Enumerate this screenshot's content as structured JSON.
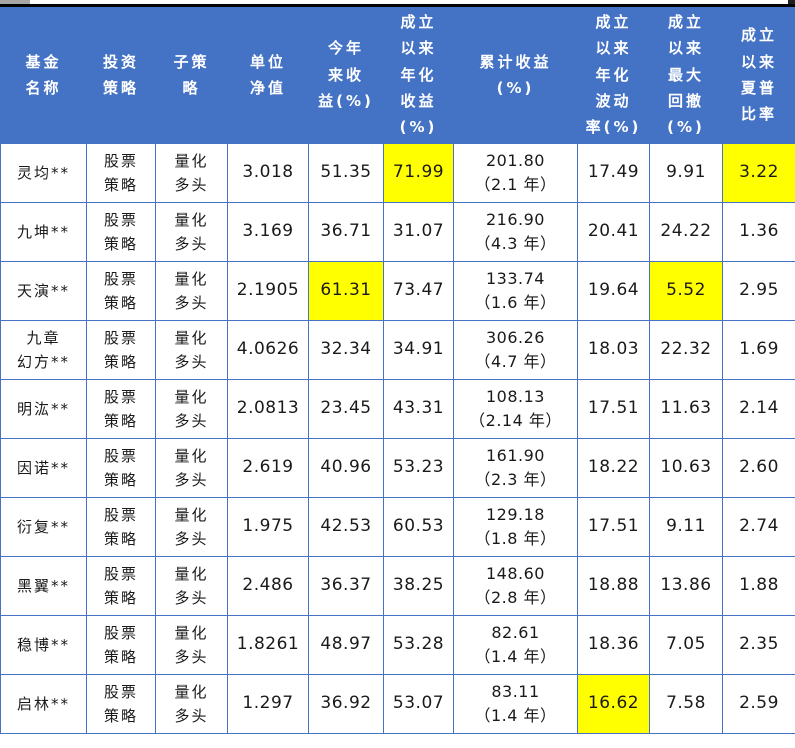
{
  "colors": {
    "header_bg": "#4472c4",
    "border": "#4472c4",
    "header_text": "#ffffff",
    "body_text": "#1a1a1a",
    "highlight": "#ffff00",
    "top_rule": "#000000"
  },
  "table": {
    "column_keys": [
      "fund-name",
      "investment-strategy",
      "sub-strategy",
      "unit-nav",
      "ytd-return-pct",
      "annualized-return-pct",
      "cumulative-return-pct",
      "annualized-volatility-pct",
      "max-drawdown-pct",
      "sharpe-ratio"
    ],
    "headers": [
      "基金\n名称",
      "投资\n策略",
      "子策\n略",
      "单位\n净值",
      "今年\n来收\n益(%)",
      "成立\n以来\n年化\n收益\n(%)",
      "累计收益\n(%)",
      "成立\n以来\n年化\n波动\n率(%)",
      "成立\n以来\n最大\n回撤\n(%)",
      "成立\n以来\n夏普\n比率"
    ],
    "rows": [
      [
        "灵均**",
        "股票\n策略",
        "量化\n多头",
        "3.018",
        "51.35",
        "71.99",
        "201.80\n（2.1 年）",
        "17.49",
        "9.91",
        "3.22"
      ],
      [
        "九坤**",
        "股票\n策略",
        "量化\n多头",
        "3.169",
        "36.71",
        "31.07",
        "216.90\n（4.3 年）",
        "20.41",
        "24.22",
        "1.36"
      ],
      [
        "天演**",
        "股票\n策略",
        "量化\n多头",
        "2.1905",
        "61.31",
        "73.47",
        "133.74\n（1.6 年）",
        "19.64",
        "5.52",
        "2.95"
      ],
      [
        "九章\n幻方**",
        "股票\n策略",
        "量化\n多头",
        "4.0626",
        "32.34",
        "34.91",
        "306.26\n（4.7 年）",
        "18.03",
        "22.32",
        "1.69"
      ],
      [
        "明汯**",
        "股票\n策略",
        "量化\n多头",
        "2.0813",
        "23.45",
        "43.31",
        "108.13\n（2.14 年）",
        "17.51",
        "11.63",
        "2.14"
      ],
      [
        "因诺**",
        "股票\n策略",
        "量化\n多头",
        "2.619",
        "40.96",
        "53.23",
        "161.90\n（2.3 年）",
        "18.22",
        "10.63",
        "2.60"
      ],
      [
        "衍复**",
        "股票\n策略",
        "量化\n多头",
        "1.975",
        "42.53",
        "60.53",
        "129.18\n（1.8 年）",
        "17.51",
        "9.11",
        "2.74"
      ],
      [
        "黑翼**",
        "股票\n策略",
        "量化\n多头",
        "2.486",
        "36.37",
        "38.25",
        "148.60\n（2.8 年）",
        "18.88",
        "13.86",
        "1.88"
      ],
      [
        "稳博**",
        "股票\n策略",
        "量化\n多头",
        "1.8261",
        "48.97",
        "53.28",
        "82.61\n（1.4 年）",
        "18.36",
        "7.05",
        "2.35"
      ],
      [
        "启林**",
        "股票\n策略",
        "量化\n多头",
        "1.297",
        "36.92",
        "53.07",
        "83.11\n（1.4 年）",
        "16.62",
        "7.58",
        "2.59"
      ]
    ],
    "highlighted_cells": [
      [
        0,
        5
      ],
      [
        0,
        9
      ],
      [
        2,
        4
      ],
      [
        2,
        8
      ],
      [
        9,
        7
      ]
    ]
  },
  "chart_data": {
    "type": "table",
    "title": "",
    "columns": [
      "基金名称",
      "投资策略",
      "子策略",
      "单位净值",
      "今年来收益(%)",
      "成立以来年化收益(%)",
      "累计收益(%)",
      "成立以来年化波动率(%)",
      "成立以来最大回撤(%)",
      "成立以来夏普比率"
    ],
    "rows": [
      [
        "灵均**",
        "股票策略",
        "量化多头",
        3.018,
        51.35,
        71.99,
        "201.80（2.1年）",
        17.49,
        9.91,
        3.22
      ],
      [
        "九坤**",
        "股票策略",
        "量化多头",
        3.169,
        36.71,
        31.07,
        "216.90（4.3年）",
        20.41,
        24.22,
        1.36
      ],
      [
        "天演**",
        "股票策略",
        "量化多头",
        2.1905,
        61.31,
        73.47,
        "133.74（1.6年）",
        19.64,
        5.52,
        2.95
      ],
      [
        "九章幻方**",
        "股票策略",
        "量化多头",
        4.0626,
        32.34,
        34.91,
        "306.26（4.7年）",
        18.03,
        22.32,
        1.69
      ],
      [
        "明汯**",
        "股票策略",
        "量化多头",
        2.0813,
        23.45,
        43.31,
        "108.13（2.14年）",
        17.51,
        11.63,
        2.14
      ],
      [
        "因诺**",
        "股票策略",
        "量化多头",
        2.619,
        40.96,
        53.23,
        "161.90（2.3年）",
        18.22,
        10.63,
        2.6
      ],
      [
        "衍复**",
        "股票策略",
        "量化多头",
        1.975,
        42.53,
        60.53,
        "129.18（1.8年）",
        17.51,
        9.11,
        2.74
      ],
      [
        "黑翼**",
        "股票策略",
        "量化多头",
        2.486,
        36.37,
        38.25,
        "148.60（2.8年）",
        18.88,
        13.86,
        1.88
      ],
      [
        "稳博**",
        "股票策略",
        "量化多头",
        1.8261,
        48.97,
        53.28,
        "82.61（1.4年）",
        18.36,
        7.05,
        2.35
      ],
      [
        "启林**",
        "股票策略",
        "量化多头",
        1.297,
        36.92,
        53.07,
        "83.11（1.4年）",
        16.62,
        7.58,
        2.59
      ]
    ],
    "highlighted_cells_row_col": [
      [
        0,
        5
      ],
      [
        0,
        9
      ],
      [
        2,
        4
      ],
      [
        2,
        8
      ],
      [
        9,
        7
      ]
    ],
    "highlight_color": "#ffff00"
  }
}
